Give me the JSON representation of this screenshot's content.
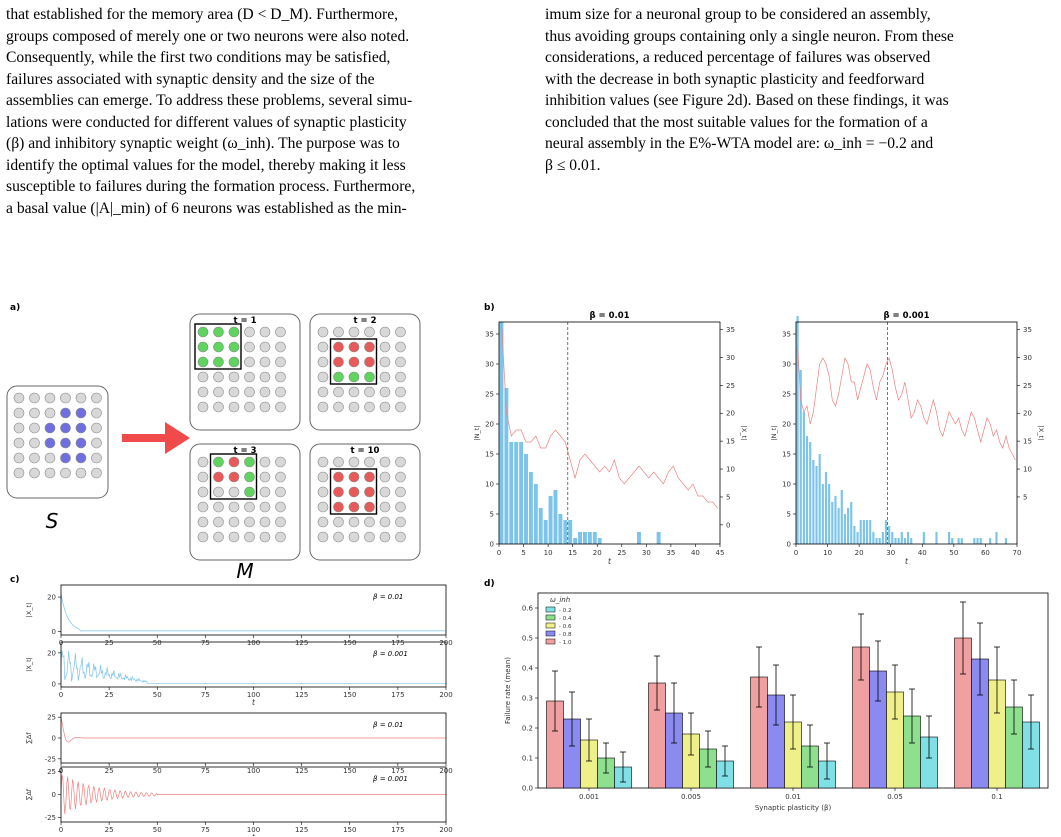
{
  "text": {
    "left_lines": [
      "that established for the memory area (D < D_M). Furthermore,",
      "groups composed of merely one or two neurons were also noted.",
      "Consequently, while the first two conditions may be satisfied,",
      "failures associated with synaptic density and the size of the",
      "assemblies can emerge. To address these problems, several simu-",
      "lations were conducted for different values of synaptic plasticity",
      "(β) and inhibitory synaptic weight (ω_inh). The purpose was to",
      "identify the optimal values for the model, thereby making it less",
      "susceptible to failures during the formation process. Furthermore,",
      "a basal value (|A|_min) of 6 neurons was established as the min-"
    ],
    "right_lines": [
      "imum size for a neuronal group to be considered an assembly,",
      "thus avoiding groups containing only a single neuron. From these",
      "considerations, a reduced percentage of failures was observed",
      "with the decrease in both synaptic plasticity and feedforward",
      "inhibition values (see Figure 2d). Based on these findings, it was",
      "concluded that the most suitable values for the formation of a",
      "neural assembly in the E%-WTA model are: ω_inh = −0.2 and",
      "β ≤ 0.01."
    ]
  },
  "figure": {
    "panel_labels": [
      "a)",
      "b)",
      "c)",
      "d)"
    ],
    "panel_a": {
      "source_label": "S",
      "memory_label": "M",
      "grids": [
        {
          "title": "t = 1"
        },
        {
          "title": "t = 2"
        },
        {
          "title": "t = 3"
        },
        {
          "title": "t = 10"
        }
      ],
      "colors": {
        "blue": "#6f6fe0",
        "green": "#5fd45f",
        "red": "#e85a5a",
        "gray": "#d8d8d8",
        "arrow": "#f04a4a"
      }
    },
    "panel_c": {
      "rows": [
        {
          "ylabel": "|X_t|",
          "beta_label": "β = 0.01"
        },
        {
          "ylabel": "|X_t|",
          "beta_label": "β = 0.001"
        },
        {
          "ylabel": "∑Δf",
          "beta_label": "β = 0.01"
        },
        {
          "ylabel": "∑Δf",
          "beta_label": "β = 0.001"
        }
      ],
      "xticks": [
        "0",
        "25",
        "50",
        "75",
        "100",
        "125",
        "150",
        "175",
        "200"
      ],
      "xlabel": "t",
      "yticks_top": [
        "0",
        "20"
      ],
      "yticks_bottom": [
        "0",
        "25"
      ],
      "yticks_bottom_neg": "-25",
      "colors": {
        "blue": "#7cc4ea",
        "red": "#ef8080"
      }
    }
  },
  "chart_data": [
    {
      "type": "bar",
      "panel": "b",
      "title": "β = 0.01",
      "xlabel": "t",
      "ylabel": "|N_t|",
      "ylabel_right": "|X_t|",
      "xlim": [
        0,
        45
      ],
      "ylim": [
        0,
        37
      ],
      "xticks": [
        0,
        5,
        10,
        15,
        20,
        25,
        30,
        35,
        40,
        45
      ],
      "yticks": [
        0,
        5,
        10,
        15,
        20,
        25,
        30,
        35
      ],
      "yticks_right": [
        0,
        5,
        10,
        15,
        20,
        25,
        30,
        35
      ],
      "vline_x": 14,
      "bars": [
        37,
        26,
        17,
        17,
        17,
        15,
        12,
        10,
        6,
        4,
        8,
        9,
        5,
        4,
        4,
        1,
        2,
        2,
        2,
        2,
        1,
        0,
        0,
        0,
        0,
        0,
        0,
        0,
        2,
        0,
        0,
        0,
        2,
        0,
        0,
        0,
        0,
        0,
        0,
        0,
        0,
        0,
        0,
        0,
        0
      ],
      "line": [
        37,
        22,
        18,
        19,
        19,
        17,
        17,
        18,
        16,
        16,
        18,
        19,
        18,
        17,
        14,
        11,
        14,
        15,
        14,
        13,
        12,
        13,
        12,
        14,
        11,
        10,
        11,
        12,
        13,
        12,
        11,
        12,
        11,
        10,
        12,
        13,
        11,
        10,
        9,
        10,
        8,
        8,
        7,
        7,
        6
      ],
      "colors": {
        "bars": "#7cc4ea",
        "line": "#ef8080"
      }
    },
    {
      "type": "bar",
      "panel": "b",
      "title": "β = 0.001",
      "xlabel": "t",
      "ylabel": "|N_t|",
      "ylabel_right": "|X_t|",
      "xlim": [
        0,
        70
      ],
      "ylim": [
        0,
        37
      ],
      "xticks": [
        0,
        10,
        20,
        30,
        40,
        50,
        60,
        70
      ],
      "yticks": [
        0,
        5,
        10,
        15,
        20,
        25,
        30,
        35
      ],
      "yticks_right": [
        5,
        10,
        15,
        20,
        25,
        30,
        35
      ],
      "vline_x": 29,
      "bars": [
        38,
        29,
        22,
        18,
        17,
        14,
        13,
        15,
        10,
        12,
        10,
        7,
        8,
        6,
        9,
        5,
        6,
        7,
        3,
        2,
        4,
        4,
        4,
        4,
        2,
        1,
        1,
        2,
        4,
        3,
        2,
        1,
        1,
        2,
        1,
        2,
        1,
        0,
        0,
        0,
        2,
        0,
        0,
        0,
        2,
        0,
        0,
        0,
        2,
        1,
        0,
        1,
        1,
        0,
        0,
        0,
        1,
        1,
        1,
        0,
        0,
        1,
        0,
        2,
        0,
        0,
        1,
        0,
        0,
        0
      ],
      "line": [
        33,
        24,
        22,
        23,
        20,
        22,
        26,
        30,
        31,
        30,
        28,
        24,
        23,
        25,
        28,
        31,
        30,
        27,
        27,
        24,
        26,
        28,
        30,
        29,
        26,
        24,
        27,
        28,
        30,
        31,
        29,
        26,
        24,
        25,
        27,
        24,
        21,
        22,
        24,
        23,
        21,
        20,
        22,
        24,
        22,
        19,
        18,
        20,
        22,
        21,
        20,
        21,
        19,
        18,
        20,
        22,
        21,
        19,
        17,
        19,
        21,
        20,
        18,
        19,
        17,
        16,
        18,
        16,
        15,
        14
      ],
      "colors": {
        "bars": "#7cc4ea",
        "line": "#ef8080"
      }
    },
    {
      "type": "bar",
      "panel": "d",
      "xlabel": "Synaptic plasticity (β)",
      "ylabel": "Failure rate (mean)",
      "ylim": [
        0,
        0.65
      ],
      "yticks": [
        "0.0",
        "0.1",
        "0.2",
        "0.3",
        "0.4",
        "0.5",
        "0.6"
      ],
      "categories": [
        "0.001",
        "0.005",
        "0.01",
        "0.05",
        "0.1"
      ],
      "legend_title": "ω_inh",
      "legend_placement": "top-left",
      "series": [
        {
          "name": "- 0.2",
          "values": [
            0.07,
            0.09,
            0.09,
            0.17,
            0.22
          ],
          "err": [
            0.05,
            0.05,
            0.06,
            0.07,
            0.09
          ],
          "color": "#80e0e6"
        },
        {
          "name": "- 0.4",
          "values": [
            0.1,
            0.13,
            0.14,
            0.24,
            0.27
          ],
          "err": [
            0.05,
            0.06,
            0.07,
            0.09,
            0.09
          ],
          "color": "#8ee08e"
        },
        {
          "name": "- 0.6",
          "values": [
            0.16,
            0.18,
            0.22,
            0.32,
            0.36
          ],
          "err": [
            0.07,
            0.07,
            0.09,
            0.09,
            0.11
          ],
          "color": "#f0f08a"
        },
        {
          "name": "- 0.8",
          "values": [
            0.23,
            0.25,
            0.31,
            0.39,
            0.43
          ],
          "err": [
            0.09,
            0.1,
            0.1,
            0.1,
            0.12
          ],
          "color": "#8a8af0"
        },
        {
          "name": "- 1.0",
          "values": [
            0.29,
            0.35,
            0.37,
            0.47,
            0.5
          ],
          "err": [
            0.1,
            0.09,
            0.1,
            0.11,
            0.12
          ],
          "color": "#f0a0a0"
        }
      ]
    }
  ]
}
